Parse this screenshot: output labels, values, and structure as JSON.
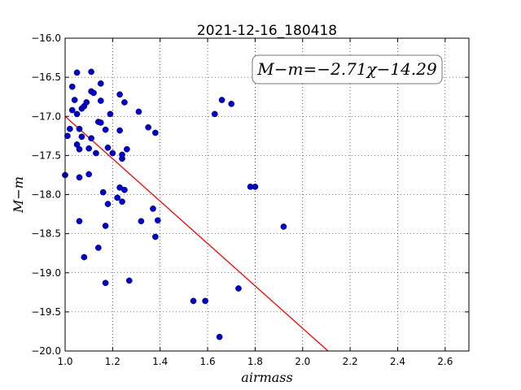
{
  "chart_data": {
    "type": "scatter",
    "title": "2021-12-16_180418",
    "xlabel": "airmass",
    "ylabel": "M−m",
    "xlim": [
      1.0,
      2.7
    ],
    "ylim": [
      -20.0,
      -16.0
    ],
    "xticks": [
      "1.0",
      "1.2",
      "1.4",
      "1.6",
      "1.8",
      "2.0",
      "2.2",
      "2.4",
      "2.6"
    ],
    "yticks": [
      "−16.0",
      "−16.5",
      "−17.0",
      "−17.5",
      "−18.0",
      "−18.5",
      "−19.0",
      "−19.5",
      "−20.0"
    ],
    "grid": true,
    "annotation": "M−m=−2.71χ−14.29",
    "fit": {
      "slope": -2.71,
      "intercept": -14.29,
      "color": "#ff0000"
    },
    "point_color": "#0000cc",
    "points": [
      [
        1.0,
        -17.75
      ],
      [
        1.01,
        -17.25
      ],
      [
        1.02,
        -17.16
      ],
      [
        1.03,
        -16.62
      ],
      [
        1.03,
        -16.92
      ],
      [
        1.04,
        -16.79
      ],
      [
        1.05,
        -16.97
      ],
      [
        1.05,
        -16.44
      ],
      [
        1.05,
        -17.36
      ],
      [
        1.06,
        -17.78
      ],
      [
        1.06,
        -17.16
      ],
      [
        1.06,
        -18.34
      ],
      [
        1.06,
        -17.42
      ],
      [
        1.07,
        -17.26
      ],
      [
        1.07,
        -16.9
      ],
      [
        1.08,
        -16.87
      ],
      [
        1.08,
        -18.8
      ],
      [
        1.09,
        -16.82
      ],
      [
        1.1,
        -17.74
      ],
      [
        1.1,
        -17.41
      ],
      [
        1.11,
        -16.43
      ],
      [
        1.11,
        -16.68
      ],
      [
        1.11,
        -17.28
      ],
      [
        1.12,
        -16.7
      ],
      [
        1.13,
        -17.47
      ],
      [
        1.14,
        -17.07
      ],
      [
        1.14,
        -18.68
      ],
      [
        1.15,
        -16.58
      ],
      [
        1.15,
        -16.8
      ],
      [
        1.15,
        -17.08
      ],
      [
        1.16,
        -17.97
      ],
      [
        1.17,
        -18.4
      ],
      [
        1.17,
        -17.17
      ],
      [
        1.17,
        -19.13
      ],
      [
        1.18,
        -17.4
      ],
      [
        1.18,
        -18.12
      ],
      [
        1.19,
        -16.97
      ],
      [
        1.2,
        -17.47
      ],
      [
        1.22,
        -18.04
      ],
      [
        1.23,
        -16.72
      ],
      [
        1.23,
        -17.18
      ],
      [
        1.23,
        -17.91
      ],
      [
        1.24,
        -17.49
      ],
      [
        1.24,
        -17.54
      ],
      [
        1.24,
        -18.09
      ],
      [
        1.25,
        -16.82
      ],
      [
        1.25,
        -17.94
      ],
      [
        1.26,
        -17.42
      ],
      [
        1.27,
        -19.1
      ],
      [
        1.31,
        -16.94
      ],
      [
        1.32,
        -18.34
      ],
      [
        1.35,
        -17.14
      ],
      [
        1.37,
        -18.18
      ],
      [
        1.38,
        -17.21
      ],
      [
        1.38,
        -18.54
      ],
      [
        1.39,
        -18.33
      ],
      [
        1.54,
        -19.36
      ],
      [
        1.59,
        -19.36
      ],
      [
        1.63,
        -16.97
      ],
      [
        1.65,
        -19.82
      ],
      [
        1.66,
        -16.79
      ],
      [
        1.7,
        -16.84
      ],
      [
        1.73,
        -19.2
      ],
      [
        1.78,
        -17.9
      ],
      [
        1.8,
        -17.9
      ],
      [
        1.92,
        -18.41
      ]
    ]
  }
}
